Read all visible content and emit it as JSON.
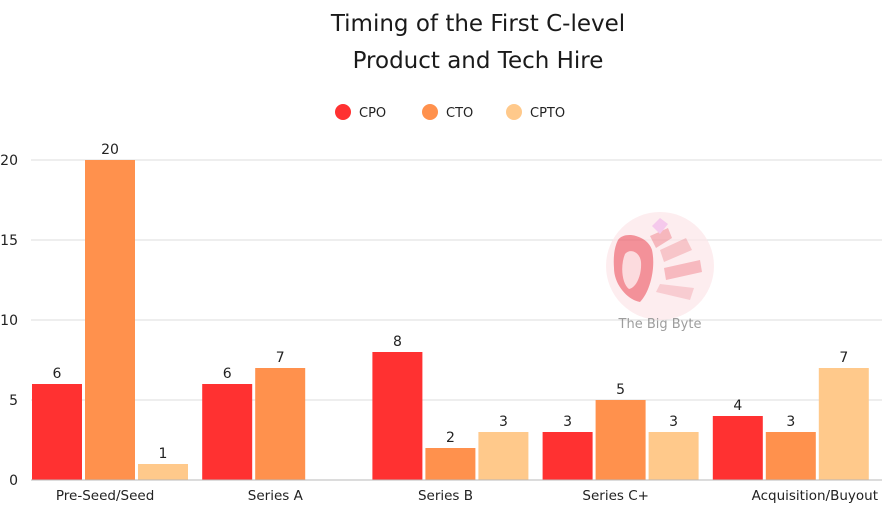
{
  "chart_data": {
    "type": "bar",
    "title_lines": [
      "Timing of the First C-level",
      "Product and Tech Hire"
    ],
    "categories": [
      "Pre-Seed/Seed",
      "Series A",
      "Series B",
      "Series C+",
      "Acquisition/Buyout"
    ],
    "series": [
      {
        "name": "CPO",
        "color": "#ff3131",
        "values": [
          6,
          6,
          8,
          3,
          4
        ]
      },
      {
        "name": "CTO",
        "color": "#ff914d",
        "values": [
          20,
          7,
          2,
          5,
          3
        ]
      },
      {
        "name": "CPTO",
        "color": "#ffc98b",
        "values": [
          1,
          null,
          3,
          3,
          7
        ]
      }
    ],
    "ylim": [
      0,
      20
    ],
    "yticks": [
      0,
      5,
      10,
      15,
      20
    ],
    "grid": true,
    "legend_position": "top-center",
    "data_labels": true
  },
  "watermark": {
    "text": "The Big Byte",
    "icon": "open-mouth-logo-icon"
  }
}
